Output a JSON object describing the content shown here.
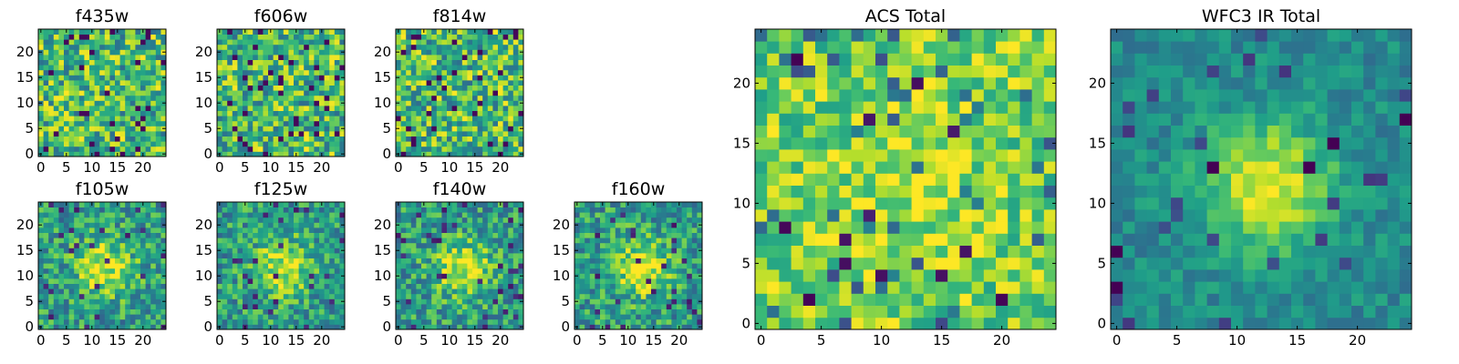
{
  "chart_data": [
    {
      "type": "heatmap",
      "title": "f435w",
      "grid_size": 25,
      "xticks": [
        0,
        5,
        10,
        15,
        20
      ],
      "yticks": [
        0,
        5,
        10,
        15,
        20
      ],
      "colormap": "viridis",
      "pattern": "uniform noise",
      "seed": 11
    },
    {
      "type": "heatmap",
      "title": "f606w",
      "grid_size": 25,
      "xticks": [
        0,
        5,
        10,
        15,
        20
      ],
      "yticks": [
        0,
        5,
        10,
        15,
        20
      ],
      "colormap": "viridis",
      "pattern": "uniform noise",
      "seed": 23
    },
    {
      "type": "heatmap",
      "title": "f814w",
      "grid_size": 25,
      "xticks": [
        0,
        5,
        10,
        15,
        20
      ],
      "yticks": [
        0,
        5,
        10,
        15,
        20
      ],
      "colormap": "viridis",
      "pattern": "uniform noise",
      "seed": 37
    },
    {
      "type": "heatmap",
      "title": "f105w",
      "grid_size": 25,
      "xticks": [
        0,
        5,
        10,
        15,
        20
      ],
      "yticks": [
        0,
        5,
        10,
        15,
        20
      ],
      "colormap": "viridis",
      "pattern": "central source with noise",
      "seed": 41
    },
    {
      "type": "heatmap",
      "title": "f125w",
      "grid_size": 25,
      "xticks": [
        0,
        5,
        10,
        15,
        20
      ],
      "yticks": [
        0,
        5,
        10,
        15,
        20
      ],
      "colormap": "viridis",
      "pattern": "central source with noise",
      "seed": 53
    },
    {
      "type": "heatmap",
      "title": "f140w",
      "grid_size": 25,
      "xticks": [
        0,
        5,
        10,
        15,
        20
      ],
      "yticks": [
        0,
        5,
        10,
        15,
        20
      ],
      "colormap": "viridis",
      "pattern": "central source with noise",
      "seed": 67
    },
    {
      "type": "heatmap",
      "title": "f160w",
      "grid_size": 25,
      "xticks": [
        0,
        5,
        10,
        15,
        20
      ],
      "yticks": [
        0,
        5,
        10,
        15,
        20
      ],
      "colormap": "viridis",
      "pattern": "central source with noise",
      "seed": 79
    },
    {
      "type": "heatmap",
      "title": "ACS Total",
      "grid_size": 25,
      "xticks": [
        0,
        5,
        10,
        15,
        20
      ],
      "yticks": [
        0,
        5,
        10,
        15,
        20
      ],
      "colormap": "viridis",
      "pattern": "bright noise",
      "seed": 83
    },
    {
      "type": "heatmap",
      "title": "WFC3 IR Total",
      "grid_size": 25,
      "xticks": [
        0,
        5,
        10,
        15,
        20
      ],
      "yticks": [
        0,
        5,
        10,
        15,
        20
      ],
      "colormap": "viridis",
      "pattern": "central source with smooth noise",
      "seed": 97
    }
  ]
}
